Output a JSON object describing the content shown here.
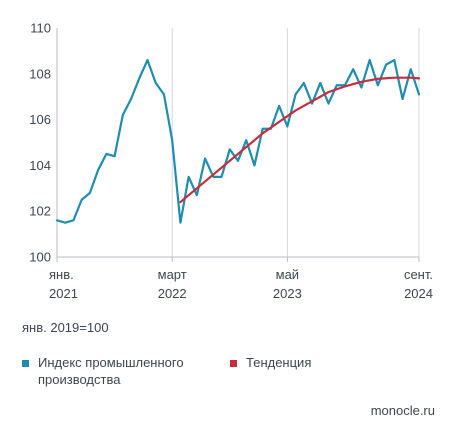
{
  "chart_data": {
    "type": "line",
    "ylim": [
      100,
      110
    ],
    "y_ticks": [
      "100",
      "102",
      "104",
      "106",
      "108",
      "110"
    ],
    "x_range": [
      "2021-01",
      "2024-09"
    ],
    "x_ticks": [
      {
        "month": "2021-01",
        "line1": "янв.",
        "line2": "2021"
      },
      {
        "month": "2022-03",
        "line1": "март",
        "line2": "2022"
      },
      {
        "month": "2023-05",
        "line1": "май",
        "line2": "2023"
      },
      {
        "month": "2024-09",
        "line1": "сент.",
        "line2": "2024"
      }
    ],
    "grid": "vertical at labeled months",
    "series": [
      {
        "name": "Индекс промышленного производства",
        "color": "#1f8db0",
        "points": [
          [
            "2021-01",
            101.6
          ],
          [
            "2021-02",
            101.5
          ],
          [
            "2021-03",
            101.6
          ],
          [
            "2021-04",
            102.5
          ],
          [
            "2021-05",
            102.8
          ],
          [
            "2021-06",
            103.8
          ],
          [
            "2021-07",
            104.5
          ],
          [
            "2021-08",
            104.4
          ],
          [
            "2021-09",
            106.2
          ],
          [
            "2021-10",
            106.9
          ],
          [
            "2021-11",
            107.8
          ],
          [
            "2021-12",
            108.6
          ],
          [
            "2022-01",
            107.6
          ],
          [
            "2022-02",
            107.1
          ],
          [
            "2022-03",
            105.1
          ],
          [
            "2022-04",
            101.5
          ],
          [
            "2022-05",
            103.5
          ],
          [
            "2022-06",
            102.7
          ],
          [
            "2022-07",
            104.3
          ],
          [
            "2022-08",
            103.5
          ],
          [
            "2022-09",
            103.5
          ],
          [
            "2022-10",
            104.7
          ],
          [
            "2022-11",
            104.2
          ],
          [
            "2022-12",
            105.1
          ],
          [
            "2023-01",
            104.0
          ],
          [
            "2023-02",
            105.6
          ],
          [
            "2023-03",
            105.6
          ],
          [
            "2023-04",
            106.6
          ],
          [
            "2023-05",
            105.7
          ],
          [
            "2023-06",
            107.1
          ],
          [
            "2023-07",
            107.6
          ],
          [
            "2023-08",
            106.7
          ],
          [
            "2023-09",
            107.6
          ],
          [
            "2023-10",
            106.7
          ],
          [
            "2023-11",
            107.5
          ],
          [
            "2023-12",
            107.5
          ],
          [
            "2024-01",
            108.2
          ],
          [
            "2024-02",
            107.4
          ],
          [
            "2024-03",
            108.6
          ],
          [
            "2024-04",
            107.5
          ],
          [
            "2024-05",
            108.4
          ],
          [
            "2024-06",
            108.6
          ],
          [
            "2024-07",
            106.9
          ],
          [
            "2024-08",
            108.2
          ],
          [
            "2024-09",
            107.1
          ]
        ]
      },
      {
        "name": "Тенденция",
        "color": "#c62d3c",
        "points": [
          [
            "2022-04",
            102.4
          ],
          [
            "2022-06",
            103.0
          ],
          [
            "2022-08",
            103.6
          ],
          [
            "2022-10",
            104.2
          ],
          [
            "2022-12",
            104.8
          ],
          [
            "2023-02",
            105.4
          ],
          [
            "2023-04",
            105.9
          ],
          [
            "2023-06",
            106.4
          ],
          [
            "2023-08",
            106.8
          ],
          [
            "2023-10",
            107.2
          ],
          [
            "2023-12",
            107.45
          ],
          [
            "2024-02",
            107.65
          ],
          [
            "2024-04",
            107.78
          ],
          [
            "2024-06",
            107.83
          ],
          [
            "2024-08",
            107.83
          ],
          [
            "2024-09",
            107.8
          ]
        ]
      }
    ]
  },
  "note": "янв. 2019=100",
  "legend": [
    {
      "label": "Индекс промышленного производства",
      "color": "#1f8db0"
    },
    {
      "label": "Тенденция",
      "color": "#c62d3c"
    }
  ],
  "source": "monocle.ru"
}
